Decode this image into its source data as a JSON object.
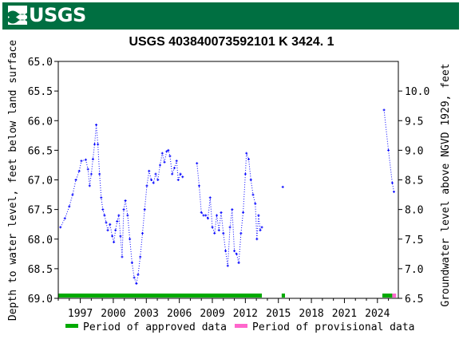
{
  "header": {
    "logo_text": "USGS"
  },
  "chart_data": {
    "type": "scatter",
    "title": "USGS 403840073592101 K  3424. 1",
    "ylabel_left": "Depth to water level, feet below land surface",
    "ylabel_right": "Groundwater level above NGVD 1929, feet",
    "ylim_left": [
      69.0,
      65.0
    ],
    "ylim_right": [
      6.5,
      10.5
    ],
    "xlim": [
      1995.0,
      2025.9
    ],
    "y_ticks_left": [
      "65.0",
      "65.5",
      "66.0",
      "66.5",
      "67.0",
      "67.5",
      "68.0",
      "68.5",
      "69.0"
    ],
    "y_ticks_right": [
      "6.5",
      "7.0",
      "7.5",
      "8.0",
      "8.5",
      "9.0",
      "9.5",
      "10.0"
    ],
    "x_ticks": [
      "1997",
      "2000",
      "2003",
      "2006",
      "2009",
      "2012",
      "2015",
      "2018",
      "2021",
      "2024"
    ],
    "series": [
      {
        "line": "dotted",
        "color": "#0000ff",
        "points": [
          [
            1995.2,
            67.8
          ],
          [
            1995.6,
            67.65
          ],
          [
            1996.0,
            67.45
          ],
          [
            1996.3,
            67.25
          ],
          [
            1996.6,
            67.0
          ],
          [
            1996.9,
            66.85
          ],
          [
            1997.1,
            66.68
          ],
          [
            1997.5,
            66.66
          ],
          [
            1997.7,
            66.82
          ],
          [
            1997.85,
            67.1
          ],
          [
            1998.0,
            66.9
          ],
          [
            1998.15,
            66.65
          ],
          [
            1998.3,
            66.4
          ],
          [
            1998.45,
            66.07
          ],
          [
            1998.6,
            66.4
          ],
          [
            1998.75,
            66.9
          ],
          [
            1998.9,
            67.3
          ],
          [
            1999.05,
            67.5
          ],
          [
            1999.2,
            67.6
          ],
          [
            1999.35,
            67.72
          ],
          [
            1999.5,
            67.85
          ],
          [
            1999.7,
            67.75
          ],
          [
            1999.9,
            67.95
          ],
          [
            2000.05,
            68.05
          ],
          [
            2000.2,
            67.85
          ],
          [
            2000.35,
            67.7
          ],
          [
            2000.5,
            67.6
          ],
          [
            2000.65,
            67.95
          ],
          [
            2000.8,
            68.3
          ],
          [
            2000.95,
            67.5
          ],
          [
            2001.1,
            67.35
          ],
          [
            2001.3,
            67.6
          ],
          [
            2001.5,
            68.0
          ],
          [
            2001.7,
            68.4
          ],
          [
            2001.9,
            68.65
          ],
          [
            2002.1,
            68.75
          ],
          [
            2002.25,
            68.6
          ],
          [
            2002.45,
            68.3
          ],
          [
            2002.65,
            67.9
          ],
          [
            2002.85,
            67.5
          ],
          [
            2003.05,
            67.1
          ],
          [
            2003.25,
            66.85
          ],
          [
            2003.45,
            67.0
          ],
          [
            2003.65,
            67.05
          ],
          [
            2003.85,
            66.9
          ],
          [
            2004.05,
            67.0
          ],
          [
            2004.25,
            66.75
          ],
          [
            2004.45,
            66.55
          ],
          [
            2004.65,
            66.7
          ],
          [
            2004.85,
            66.52
          ],
          [
            2005.0,
            66.5
          ],
          [
            2005.15,
            66.6
          ],
          [
            2005.35,
            66.9
          ],
          [
            2005.55,
            66.8
          ],
          [
            2005.75,
            66.68
          ],
          [
            2005.9,
            67.0
          ],
          [
            2006.1,
            66.9
          ],
          [
            2006.3,
            66.95
          ],
          [
            2007.6,
            66.72
          ],
          [
            2007.8,
            67.1
          ],
          [
            2008.0,
            67.55
          ],
          [
            2008.2,
            67.6
          ],
          [
            2008.4,
            67.6
          ],
          [
            2008.6,
            67.65
          ],
          [
            2008.8,
            67.3
          ],
          [
            2009.0,
            67.8
          ],
          [
            2009.2,
            67.9
          ],
          [
            2009.4,
            67.6
          ],
          [
            2009.6,
            67.85
          ],
          [
            2009.8,
            67.55
          ],
          [
            2010.0,
            67.9
          ],
          [
            2010.2,
            68.2
          ],
          [
            2010.4,
            68.45
          ],
          [
            2010.6,
            67.8
          ],
          [
            2010.8,
            67.5
          ],
          [
            2011.0,
            68.2
          ],
          [
            2011.2,
            68.25
          ],
          [
            2011.4,
            68.4
          ],
          [
            2011.6,
            67.9
          ],
          [
            2011.8,
            67.55
          ],
          [
            2012.0,
            66.9
          ],
          [
            2012.1,
            66.55
          ],
          [
            2012.3,
            66.65
          ],
          [
            2012.5,
            67.0
          ],
          [
            2012.7,
            67.25
          ],
          [
            2012.9,
            67.4
          ],
          [
            2013.05,
            68.0
          ],
          [
            2013.2,
            67.6
          ],
          [
            2013.35,
            67.85
          ],
          [
            2013.5,
            67.8
          ],
          [
            2015.4,
            67.12
          ],
          [
            2024.6,
            65.82
          ],
          [
            2025.0,
            66.5
          ],
          [
            2025.35,
            67.05
          ],
          [
            2025.5,
            67.2
          ]
        ]
      }
    ],
    "approved_periods": [
      [
        1995.0,
        2013.5
      ],
      [
        2015.3,
        2015.6
      ],
      [
        2024.45,
        2025.35
      ]
    ],
    "provisional_periods": [
      [
        2025.35,
        2025.7
      ]
    ],
    "legend": {
      "placement": "bottom",
      "approved_label": "Period of approved data",
      "approved_color": "#00aa00",
      "provisional_label": "Period of provisional data",
      "provisional_color": "#ff66cc"
    },
    "grid": false
  }
}
